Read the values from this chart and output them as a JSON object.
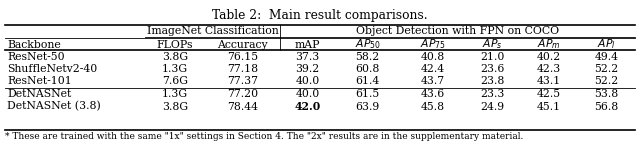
{
  "title": "Table 2:  Main result comparisons.",
  "col_labels": [
    "Backbone",
    "FLOPs",
    "Accuracy",
    "mAP",
    "AP_{50}",
    "AP_{75}",
    "AP_s",
    "AP_m",
    "AP_l"
  ],
  "rows": [
    [
      "ResNet-50",
      "3.8G",
      "76.15",
      "37.3",
      "58.2",
      "40.8",
      "21.0",
      "40.2",
      "49.4"
    ],
    [
      "ShuffleNetv2-40",
      "1.3G",
      "77.18",
      "39.2",
      "60.8",
      "42.4",
      "23.6",
      "42.3",
      "52.2"
    ],
    [
      "ResNet-101",
      "7.6G",
      "77.37",
      "40.0",
      "61.4",
      "43.7",
      "23.8",
      "43.1",
      "52.2"
    ],
    [
      "DetNASNet",
      "1.3G",
      "77.20",
      "40.0",
      "61.5",
      "43.6",
      "23.3",
      "42.5",
      "53.8"
    ],
    [
      "DetNASNet (3.8)",
      "3.8G",
      "78.44",
      "42.0",
      "63.9",
      "45.8",
      "24.9",
      "45.1",
      "56.8"
    ]
  ],
  "bold_cells": [
    [
      4,
      3
    ]
  ],
  "footnote": "* These are trained with the same \"1x\" settings in Section 4. The \"2x\" results are in the supplementary material.",
  "bg_color": "#ffffff",
  "text_color": "#000000",
  "font_size": 7.8,
  "title_font_size": 8.8,
  "footnote_font_size": 6.5,
  "group1_label": "ImageNet Classification",
  "group2_label": "Object Detection with FPN on COCO",
  "group1_cols": [
    1,
    3
  ],
  "group2_cols": [
    3,
    9
  ]
}
